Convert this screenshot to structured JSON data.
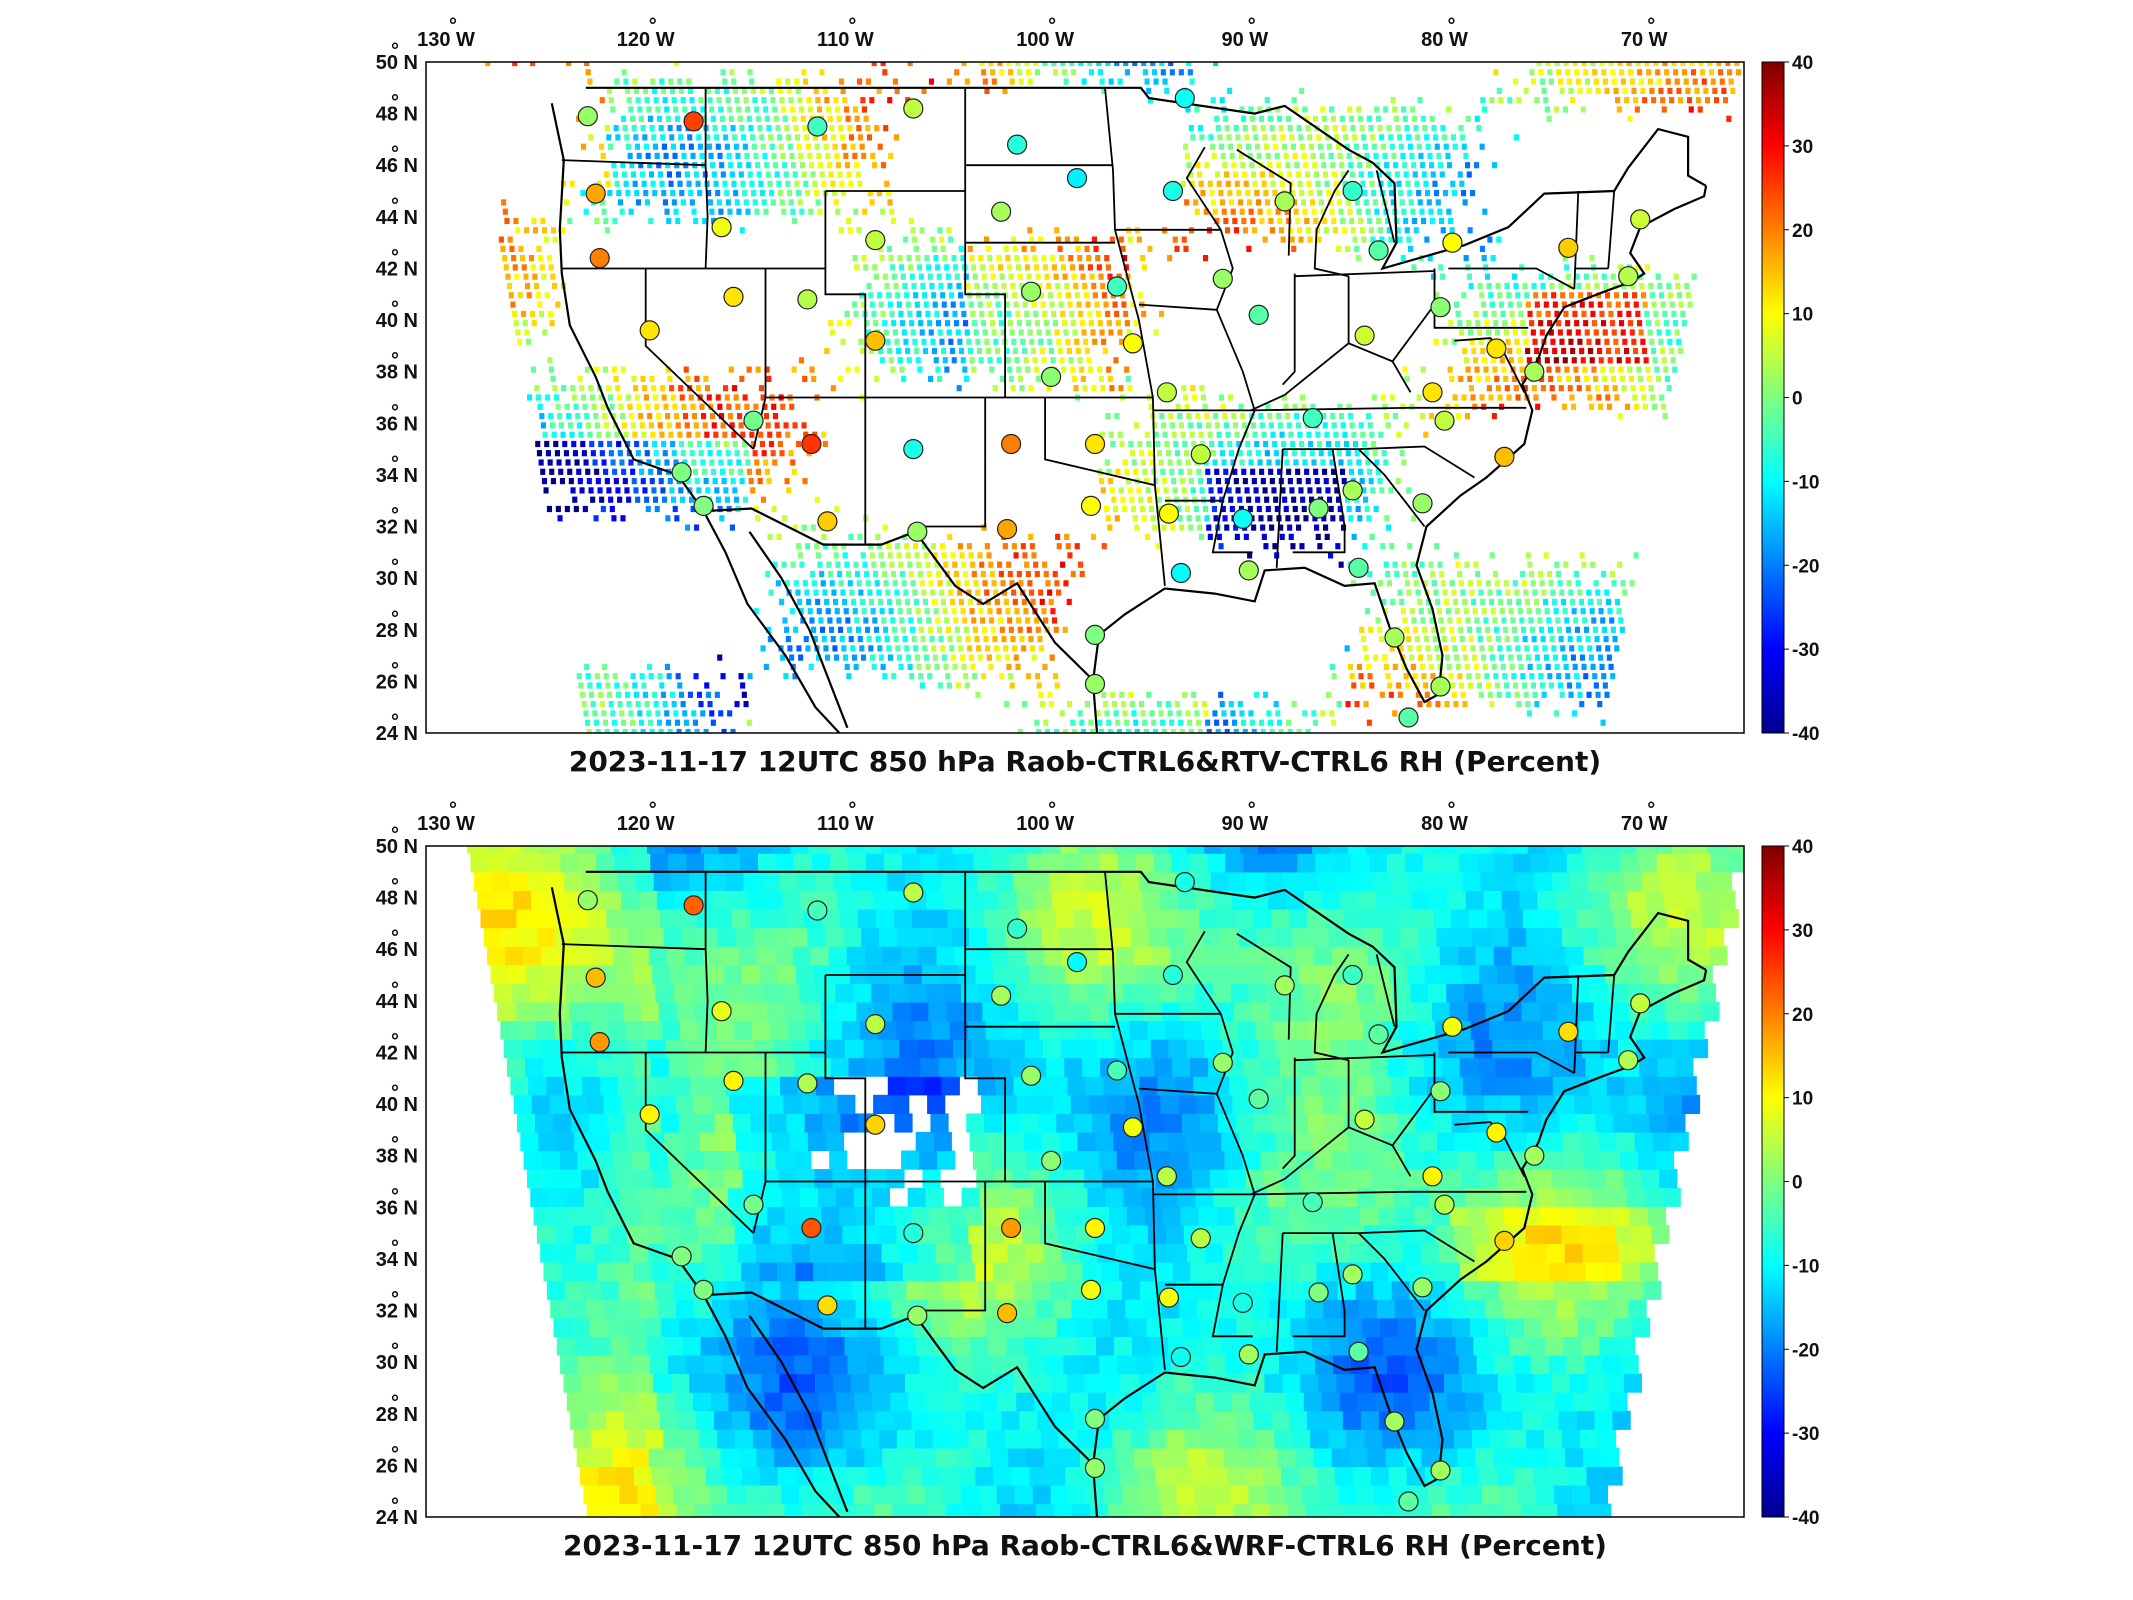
{
  "figure": {
    "panels": [
      {
        "id": "top",
        "title": "2023-11-17 12UTC 850 hPa Raob-CTRL6&RTV-CTRL6 RH (Percent)",
        "field": "RTV-CTRL6",
        "coverage": "sparse"
      },
      {
        "id": "bottom",
        "title": "2023-11-17 12UTC 850 hPa Raob-CTRL6&WRF-CTRL6 RH (Percent)",
        "field": "WRF-CTRL6",
        "coverage": "full"
      }
    ],
    "lon_ticks": [
      {
        "value": -130,
        "label": "130",
        "suffix": "W"
      },
      {
        "value": -120,
        "label": "120",
        "suffix": "W"
      },
      {
        "value": -110,
        "label": "110",
        "suffix": "W"
      },
      {
        "value": -100,
        "label": "100",
        "suffix": "W"
      },
      {
        "value": -90,
        "label": "90",
        "suffix": "W"
      },
      {
        "value": -80,
        "label": "80",
        "suffix": "W"
      },
      {
        "value": -70,
        "label": "70",
        "suffix": "W"
      }
    ],
    "lat_ticks": [
      {
        "value": 50,
        "label": "50",
        "suffix": "N"
      },
      {
        "value": 48,
        "label": "48",
        "suffix": "N"
      },
      {
        "value": 46,
        "label": "46",
        "suffix": "N"
      },
      {
        "value": 44,
        "label": "44",
        "suffix": "N"
      },
      {
        "value": 42,
        "label": "42",
        "suffix": "N"
      },
      {
        "value": 40,
        "label": "40",
        "suffix": "N"
      },
      {
        "value": 38,
        "label": "38",
        "suffix": "N"
      },
      {
        "value": 36,
        "label": "36",
        "suffix": "N"
      },
      {
        "value": 34,
        "label": "34",
        "suffix": "N"
      },
      {
        "value": 32,
        "label": "32",
        "suffix": "N"
      },
      {
        "value": 30,
        "label": "30",
        "suffix": "N"
      },
      {
        "value": 28,
        "label": "28",
        "suffix": "N"
      },
      {
        "value": 26,
        "label": "26",
        "suffix": "N"
      },
      {
        "value": 24,
        "label": "24",
        "suffix": "N"
      }
    ],
    "degree_symbol": "°",
    "colorbar": {
      "min": -40,
      "max": 40,
      "ticks": [
        "40",
        "30",
        "20",
        "10",
        "0",
        "-10",
        "-20",
        "-30",
        "-40"
      ],
      "colormap": "jet",
      "colors": [
        "#00008f",
        "#0000ff",
        "#007fff",
        "#00ffff",
        "#7fff7f",
        "#ffff00",
        "#ff7f00",
        "#ff0000",
        "#7f0000"
      ]
    },
    "stations": [
      {
        "lon": -122.9,
        "lat": 47.9,
        "v": 2
      },
      {
        "lon": -117.6,
        "lat": 47.7,
        "v": 25
      },
      {
        "lon": -111.4,
        "lat": 47.5,
        "v": -5
      },
      {
        "lon": -106.6,
        "lat": 48.2,
        "v": 5
      },
      {
        "lon": -101.4,
        "lat": 46.8,
        "v": -7
      },
      {
        "lon": -93.0,
        "lat": 48.6,
        "v": -9
      },
      {
        "lon": -122.5,
        "lat": 44.9,
        "v": 17
      },
      {
        "lon": -116.2,
        "lat": 43.6,
        "v": 9
      },
      {
        "lon": -108.5,
        "lat": 43.1,
        "v": 5
      },
      {
        "lon": -102.2,
        "lat": 44.2,
        "v": 3
      },
      {
        "lon": -98.4,
        "lat": 45.5,
        "v": -11
      },
      {
        "lon": -93.6,
        "lat": 45.0,
        "v": -8
      },
      {
        "lon": -88.0,
        "lat": 44.6,
        "v": 3
      },
      {
        "lon": -84.6,
        "lat": 45.0,
        "v": -6
      },
      {
        "lon": -122.3,
        "lat": 42.4,
        "v": 20
      },
      {
        "lon": -115.6,
        "lat": 40.9,
        "v": 12
      },
      {
        "lon": -111.9,
        "lat": 40.8,
        "v": 4
      },
      {
        "lon": -100.7,
        "lat": 41.1,
        "v": 2
      },
      {
        "lon": -96.4,
        "lat": 41.3,
        "v": -5
      },
      {
        "lon": -91.1,
        "lat": 41.6,
        "v": 2
      },
      {
        "lon": -89.3,
        "lat": 40.2,
        "v": -3
      },
      {
        "lon": -83.3,
        "lat": 42.7,
        "v": -3
      },
      {
        "lon": -79.6,
        "lat": 43.0,
        "v": 10
      },
      {
        "lon": -73.8,
        "lat": 42.8,
        "v": 14
      },
      {
        "lon": -70.2,
        "lat": 43.9,
        "v": 6
      },
      {
        "lon": -70.8,
        "lat": 41.7,
        "v": 4
      },
      {
        "lon": -119.8,
        "lat": 39.6,
        "v": 12
      },
      {
        "lon": -108.5,
        "lat": 39.2,
        "v": 15
      },
      {
        "lon": -99.7,
        "lat": 37.8,
        "v": 1
      },
      {
        "lon": -95.6,
        "lat": 39.1,
        "v": 10
      },
      {
        "lon": -84.0,
        "lat": 39.4,
        "v": 6
      },
      {
        "lon": -80.2,
        "lat": 40.5,
        "v": 1
      },
      {
        "lon": -77.4,
        "lat": 38.9,
        "v": 12
      },
      {
        "lon": -75.5,
        "lat": 38.0,
        "v": 3
      },
      {
        "lon": -114.6,
        "lat": 36.1,
        "v": -1
      },
      {
        "lon": -111.7,
        "lat": 35.2,
        "v": 26
      },
      {
        "lon": -106.6,
        "lat": 35.0,
        "v": -8
      },
      {
        "lon": -101.7,
        "lat": 35.2,
        "v": 20
      },
      {
        "lon": -97.5,
        "lat": 35.2,
        "v": 12
      },
      {
        "lon": -93.9,
        "lat": 37.2,
        "v": 5
      },
      {
        "lon": -92.2,
        "lat": 34.8,
        "v": 5
      },
      {
        "lon": -86.6,
        "lat": 36.2,
        "v": -5
      },
      {
        "lon": -80.6,
        "lat": 37.2,
        "v": 12
      },
      {
        "lon": -80.0,
        "lat": 36.1,
        "v": 5
      },
      {
        "lon": -77.0,
        "lat": 34.7,
        "v": 15
      },
      {
        "lon": -117.1,
        "lat": 32.8,
        "v": 0
      },
      {
        "lon": -118.2,
        "lat": 34.1,
        "v": 0
      },
      {
        "lon": -110.9,
        "lat": 32.2,
        "v": 14
      },
      {
        "lon": -106.4,
        "lat": 31.8,
        "v": 2
      },
      {
        "lon": -101.9,
        "lat": 31.9,
        "v": 17
      },
      {
        "lon": -97.7,
        "lat": 32.8,
        "v": 10
      },
      {
        "lon": -93.8,
        "lat": 32.5,
        "v": 10
      },
      {
        "lon": -90.1,
        "lat": 32.3,
        "v": -9
      },
      {
        "lon": -86.3,
        "lat": 32.7,
        "v": 0
      },
      {
        "lon": -84.6,
        "lat": 33.4,
        "v": 3
      },
      {
        "lon": -81.1,
        "lat": 32.9,
        "v": 2
      },
      {
        "lon": -93.2,
        "lat": 30.2,
        "v": -10
      },
      {
        "lon": -89.8,
        "lat": 30.3,
        "v": 3
      },
      {
        "lon": -84.3,
        "lat": 30.4,
        "v": -3
      },
      {
        "lon": -97.5,
        "lat": 27.8,
        "v": 0
      },
      {
        "lon": -97.5,
        "lat": 25.9,
        "v": 2
      },
      {
        "lon": -82.5,
        "lat": 27.7,
        "v": 3
      },
      {
        "lon": -80.2,
        "lat": 25.8,
        "v": 3
      },
      {
        "lon": -81.8,
        "lat": 24.6,
        "v": -3
      }
    ]
  }
}
